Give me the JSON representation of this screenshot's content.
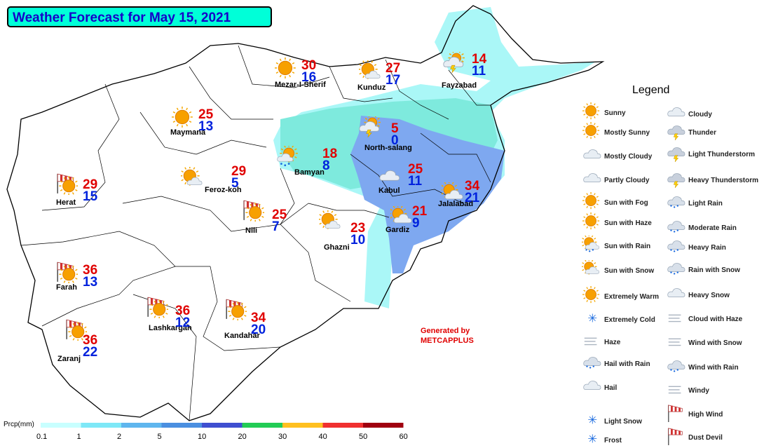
{
  "title": "Weather Forecast for May 15, 2021",
  "legend_title": "Legend",
  "generated_by": [
    "Generated by",
    "METCAPPLUS"
  ],
  "colors": {
    "title_bg": "#00ffd8",
    "title_text": "#1600c8",
    "max_temp": "#e00000",
    "min_temp": "#0022dd",
    "precip_light": "#aaf7f7",
    "precip_mid": "#7eeadd",
    "precip_blue": "#7ea8f0"
  },
  "cities": [
    {
      "name": "Mezar-I-Sherif",
      "max": "30",
      "min": "16",
      "icon": "sunny-icon"
    },
    {
      "name": "Kunduz",
      "max": "27",
      "min": "17",
      "icon": "mostly-sunny-icon"
    },
    {
      "name": "Fayzabad",
      "max": "14",
      "min": "11",
      "icon": "light-thunderstorm-icon"
    },
    {
      "name": "Maymana",
      "max": "25",
      "min": "13",
      "icon": "sunny-icon"
    },
    {
      "name": "North-salang",
      "max": "5",
      "min": "0",
      "icon": "light-thunderstorm-icon"
    },
    {
      "name": "Bamyan",
      "max": "18",
      "min": "8",
      "icon": "sun-with-rain-icon"
    },
    {
      "name": "Herat",
      "max": "29",
      "min": "15",
      "icon": "high-wind-icon"
    },
    {
      "name": "Feroz-koh",
      "max": "29",
      "min": "5",
      "icon": "mostly-sunny-icon"
    },
    {
      "name": "Kabul",
      "max": "25",
      "min": "11",
      "icon": "cloudy-icon"
    },
    {
      "name": "Jalalabad",
      "max": "34",
      "min": "21",
      "icon": "partly-cloudy-icon"
    },
    {
      "name": "Nili",
      "max": "25",
      "min": "7",
      "icon": "high-wind-icon"
    },
    {
      "name": "Gardiz",
      "max": "21",
      "min": "9",
      "icon": "partly-cloudy-icon"
    },
    {
      "name": "Ghazni",
      "max": "23",
      "min": "10",
      "icon": "mostly-sunny-icon"
    },
    {
      "name": "Farah",
      "max": "36",
      "min": "13",
      "icon": "high-wind-icon"
    },
    {
      "name": "Lashkargah",
      "max": "36",
      "min": "12",
      "icon": "high-wind-icon"
    },
    {
      "name": "Kandahar",
      "max": "34",
      "min": "20",
      "icon": "high-wind-icon"
    },
    {
      "name": "Zaranj",
      "max": "36",
      "min": "22",
      "icon": "high-wind-icon"
    }
  ],
  "legend": {
    "left": [
      "Sunny",
      "Mostly Sunny",
      "Mostly Cloudy",
      "Partly Cloudy",
      "Sun with Fog",
      "Sun with Haze",
      "Sun with Rain",
      "Sun with Snow",
      "Extremely Warm",
      "Extremely Cold",
      "Haze",
      "Hail with Rain",
      "Hail",
      "Light Snow",
      "Frost"
    ],
    "right": [
      "Cloudy",
      "Thunder",
      "Light Thunderstorm",
      "Heavy Thunderstorm",
      "Light Rain",
      "Moderate Rain",
      "Heavy Rain",
      "Rain with Snow",
      "Heavy Snow",
      "Cloud with Haze",
      "Wind with Snow",
      "Wind with Rain",
      "Windy",
      "High Wind",
      "Dust Devil"
    ]
  },
  "colorbar": {
    "title": "Prcp(mm)",
    "ticks": [
      "0.1",
      "1",
      "2",
      "5",
      "10",
      "20",
      "30",
      "40",
      "50",
      "60"
    ],
    "colors": [
      "#c8ffff",
      "#7ee8f7",
      "#5fb6ee",
      "#4b8fe0",
      "#3f4fd0",
      "#22cc55",
      "#ffc020",
      "#f03030",
      "#a00010"
    ]
  }
}
